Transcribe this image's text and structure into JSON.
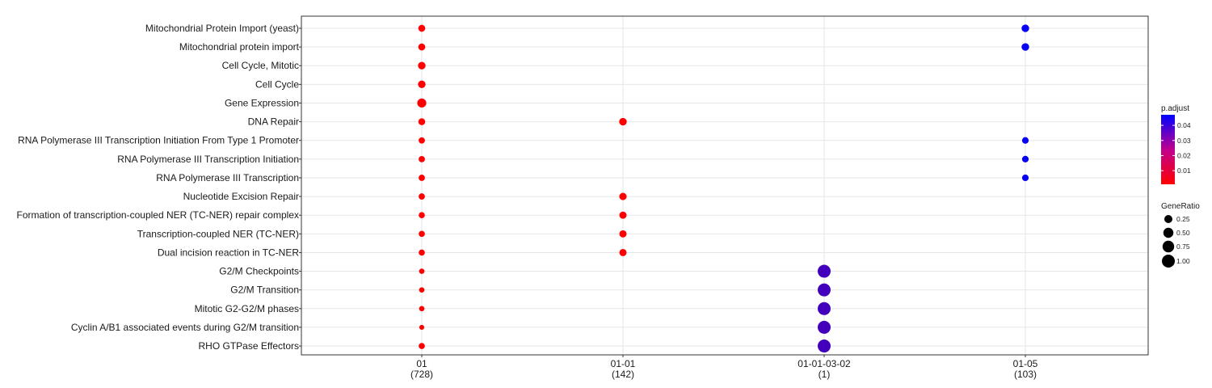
{
  "chart_data": {
    "type": "scatter",
    "pathways": [
      "Mitochondrial Protein Import (yeast)",
      "Mitochondrial protein import",
      "Cell Cycle, Mitotic",
      "Cell Cycle",
      "Gene Expression",
      "DNA Repair",
      "RNA Polymerase III Transcription Initiation From Type 1 Promoter",
      "RNA Polymerase III Transcription Initiation",
      "RNA Polymerase III Transcription",
      "Nucleotide Excision Repair",
      "Formation of transcription-coupled NER (TC-NER) repair complex",
      "Transcription-coupled NER (TC-NER)",
      "Dual incision reaction in TC-NER",
      "G2/M Checkpoints",
      "G2/M Transition",
      "Mitotic G2-G2/M phases",
      "Cyclin A/B1 associated events during G2/M transition",
      "RHO GTPase Effectors"
    ],
    "clusters": [
      {
        "name": "01",
        "count": "(728)"
      },
      {
        "name": "01-01",
        "count": "(142)"
      },
      {
        "name": "01-01-03-02",
        "count": "(1)"
      },
      {
        "name": "01-05",
        "count": "(103)"
      }
    ],
    "points": [
      {
        "cluster": 0,
        "pathway": 0,
        "gene_ratio": 0.15,
        "p_adjust": 0.001
      },
      {
        "cluster": 0,
        "pathway": 1,
        "gene_ratio": 0.15,
        "p_adjust": 0.001
      },
      {
        "cluster": 0,
        "pathway": 2,
        "gene_ratio": 0.2,
        "p_adjust": 0.001
      },
      {
        "cluster": 0,
        "pathway": 3,
        "gene_ratio": 0.2,
        "p_adjust": 0.001
      },
      {
        "cluster": 0,
        "pathway": 4,
        "gene_ratio": 0.35,
        "p_adjust": 0.001
      },
      {
        "cluster": 0,
        "pathway": 5,
        "gene_ratio": 0.14,
        "p_adjust": 0.001
      },
      {
        "cluster": 0,
        "pathway": 6,
        "gene_ratio": 0.1,
        "p_adjust": 0.001
      },
      {
        "cluster": 0,
        "pathway": 7,
        "gene_ratio": 0.1,
        "p_adjust": 0.001
      },
      {
        "cluster": 0,
        "pathway": 8,
        "gene_ratio": 0.1,
        "p_adjust": 0.001
      },
      {
        "cluster": 0,
        "pathway": 9,
        "gene_ratio": 0.1,
        "p_adjust": 0.001
      },
      {
        "cluster": 0,
        "pathway": 10,
        "gene_ratio": 0.09,
        "p_adjust": 0.001
      },
      {
        "cluster": 0,
        "pathway": 11,
        "gene_ratio": 0.09,
        "p_adjust": 0.001
      },
      {
        "cluster": 0,
        "pathway": 12,
        "gene_ratio": 0.09,
        "p_adjust": 0.001
      },
      {
        "cluster": 0,
        "pathway": 13,
        "gene_ratio": 0.05,
        "p_adjust": 0.001
      },
      {
        "cluster": 0,
        "pathway": 14,
        "gene_ratio": 0.05,
        "p_adjust": 0.001
      },
      {
        "cluster": 0,
        "pathway": 15,
        "gene_ratio": 0.05,
        "p_adjust": 0.001
      },
      {
        "cluster": 0,
        "pathway": 16,
        "gene_ratio": 0.03,
        "p_adjust": 0.001
      },
      {
        "cluster": 0,
        "pathway": 17,
        "gene_ratio": 0.09,
        "p_adjust": 0.001
      },
      {
        "cluster": 1,
        "pathway": 5,
        "gene_ratio": 0.2,
        "p_adjust": 0.001
      },
      {
        "cluster": 1,
        "pathway": 9,
        "gene_ratio": 0.18,
        "p_adjust": 0.001
      },
      {
        "cluster": 1,
        "pathway": 10,
        "gene_ratio": 0.17,
        "p_adjust": 0.001
      },
      {
        "cluster": 1,
        "pathway": 11,
        "gene_ratio": 0.17,
        "p_adjust": 0.001
      },
      {
        "cluster": 1,
        "pathway": 12,
        "gene_ratio": 0.17,
        "p_adjust": 0.001
      },
      {
        "cluster": 2,
        "pathway": 13,
        "gene_ratio": 1.0,
        "p_adjust": 0.035
      },
      {
        "cluster": 2,
        "pathway": 14,
        "gene_ratio": 1.0,
        "p_adjust": 0.035
      },
      {
        "cluster": 2,
        "pathway": 15,
        "gene_ratio": 1.0,
        "p_adjust": 0.035
      },
      {
        "cluster": 2,
        "pathway": 16,
        "gene_ratio": 1.0,
        "p_adjust": 0.035
      },
      {
        "cluster": 2,
        "pathway": 17,
        "gene_ratio": 1.0,
        "p_adjust": 0.035
      },
      {
        "cluster": 3,
        "pathway": 0,
        "gene_ratio": 0.2,
        "p_adjust": 0.046
      },
      {
        "cluster": 3,
        "pathway": 1,
        "gene_ratio": 0.2,
        "p_adjust": 0.046
      },
      {
        "cluster": 3,
        "pathway": 6,
        "gene_ratio": 0.12,
        "p_adjust": 0.046
      },
      {
        "cluster": 3,
        "pathway": 7,
        "gene_ratio": 0.12,
        "p_adjust": 0.046
      },
      {
        "cluster": 3,
        "pathway": 8,
        "gene_ratio": 0.12,
        "p_adjust": 0.046
      }
    ],
    "legend_color": {
      "title": "p.adjust",
      "range": [
        0.001,
        0.047
      ],
      "ticks": [
        0.01,
        0.02,
        0.03,
        0.04
      ],
      "tick_labels": [
        "0.01",
        "0.02",
        "0.03",
        "0.04"
      ],
      "low_color": "#ff0000",
      "high_color": "#0000ff"
    },
    "legend_size": {
      "title": "GeneRatio",
      "values": [
        0.25,
        0.5,
        0.75,
        1.0
      ],
      "labels": [
        "0.25",
        "0.50",
        "0.75",
        "1.00"
      ]
    },
    "grid": true,
    "legend_position": "right"
  }
}
